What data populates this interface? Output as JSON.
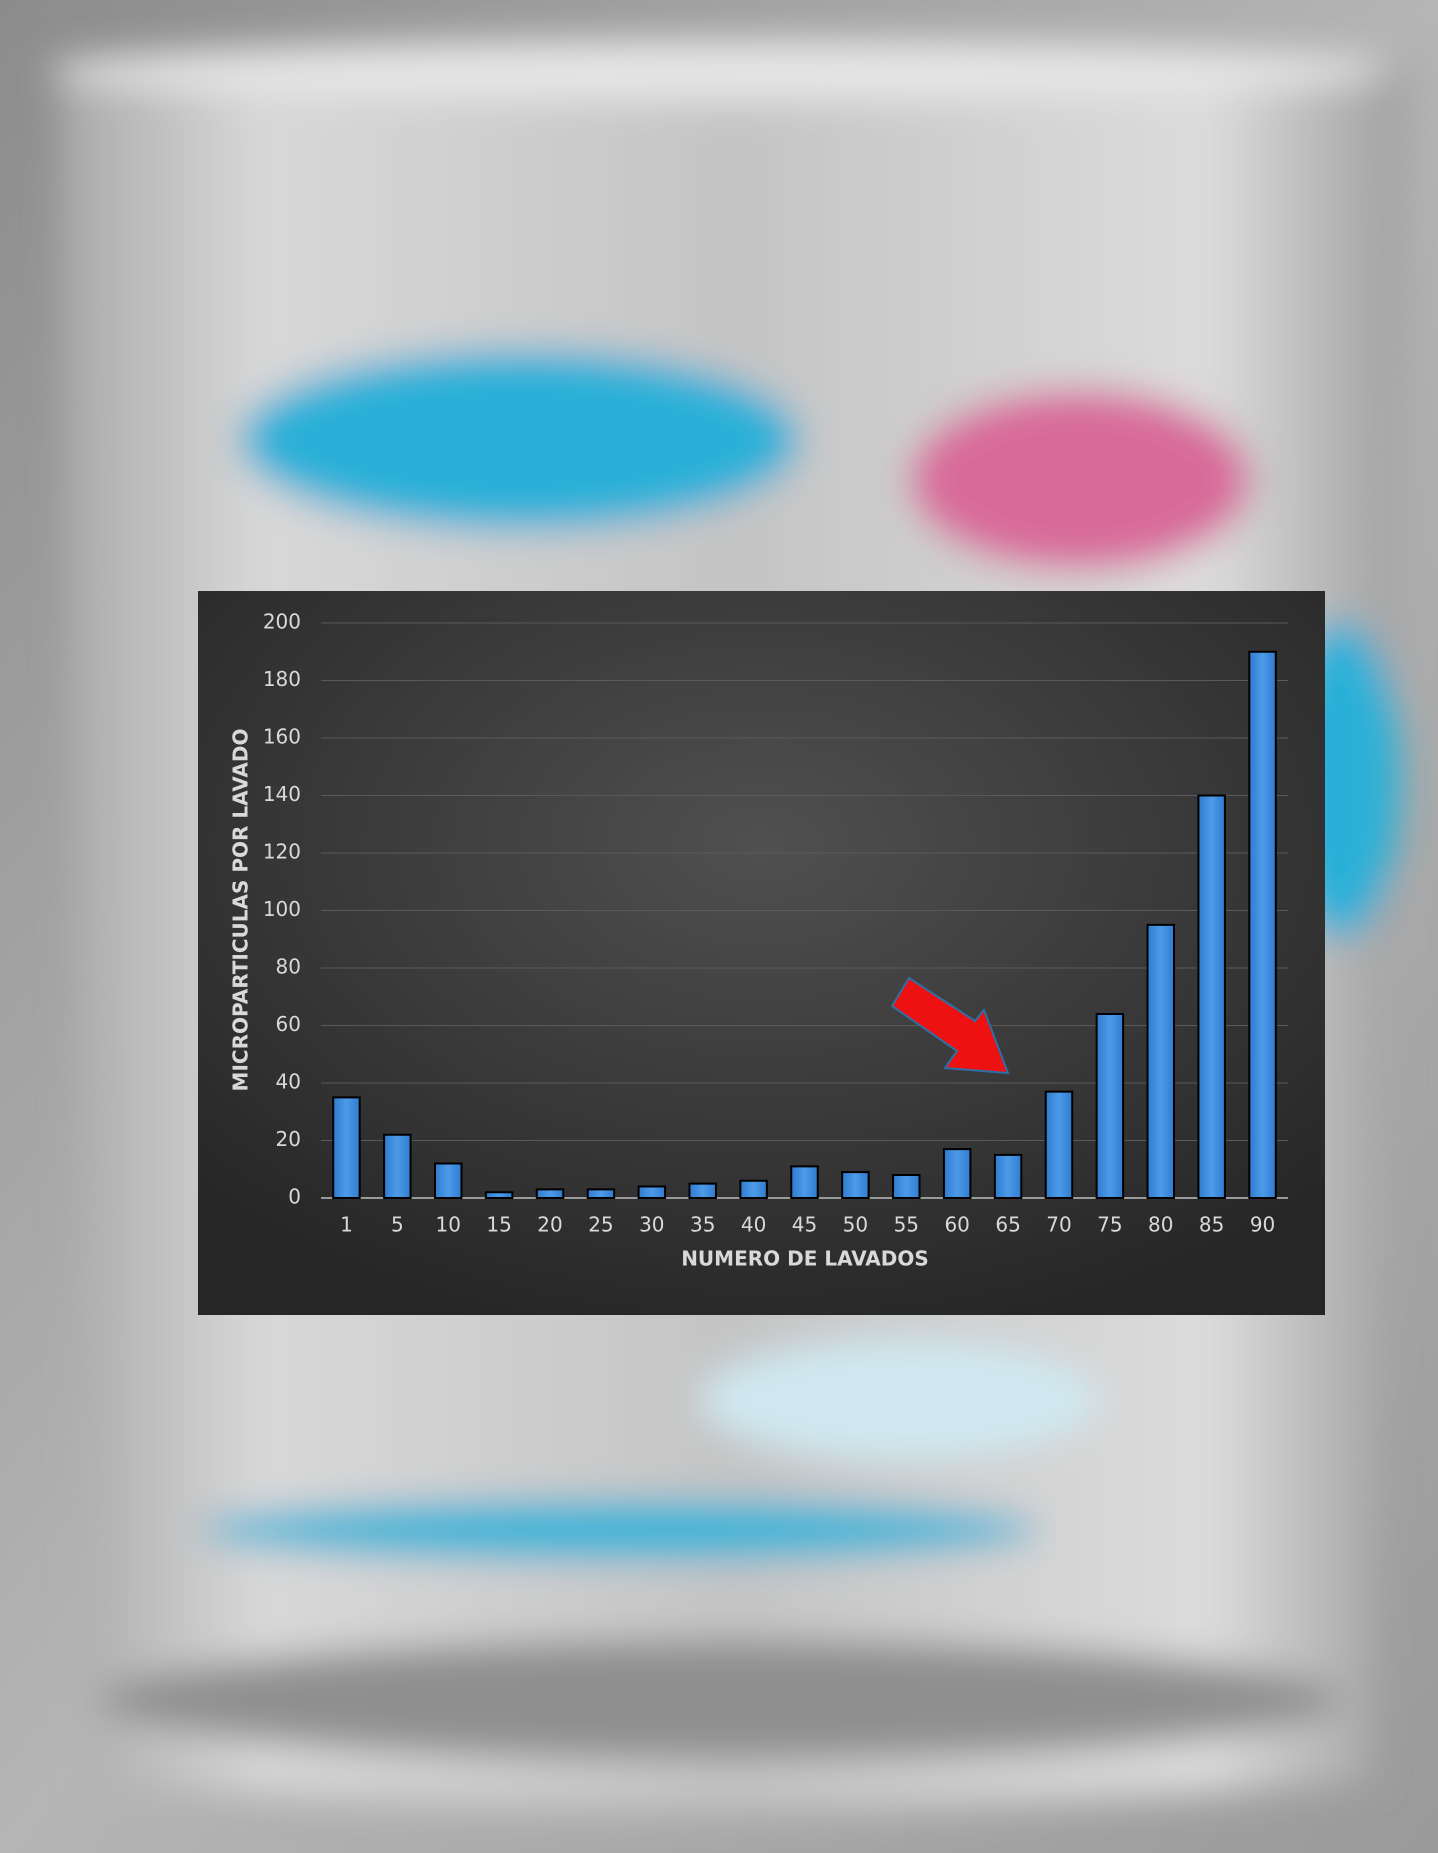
{
  "chart_data": {
    "type": "bar",
    "categories": [
      "1",
      "5",
      "10",
      "15",
      "20",
      "25",
      "30",
      "35",
      "40",
      "45",
      "50",
      "55",
      "60",
      "65",
      "70",
      "75",
      "80",
      "85",
      "90"
    ],
    "values": [
      35,
      22,
      12,
      2,
      3,
      3,
      4,
      5,
      6,
      11,
      9,
      8,
      17,
      15,
      37,
      64,
      95,
      140,
      190
    ],
    "color": "#3f8fe0",
    "x_label": "NUMERO DE LAVADOS",
    "y_label": "MICROPARTICULAS POR LAVADO",
    "ylim": [
      0,
      200
    ],
    "yticks": [
      0,
      20,
      40,
      60,
      80,
      100,
      120,
      140,
      160,
      180,
      200
    ],
    "grid": true
  }
}
